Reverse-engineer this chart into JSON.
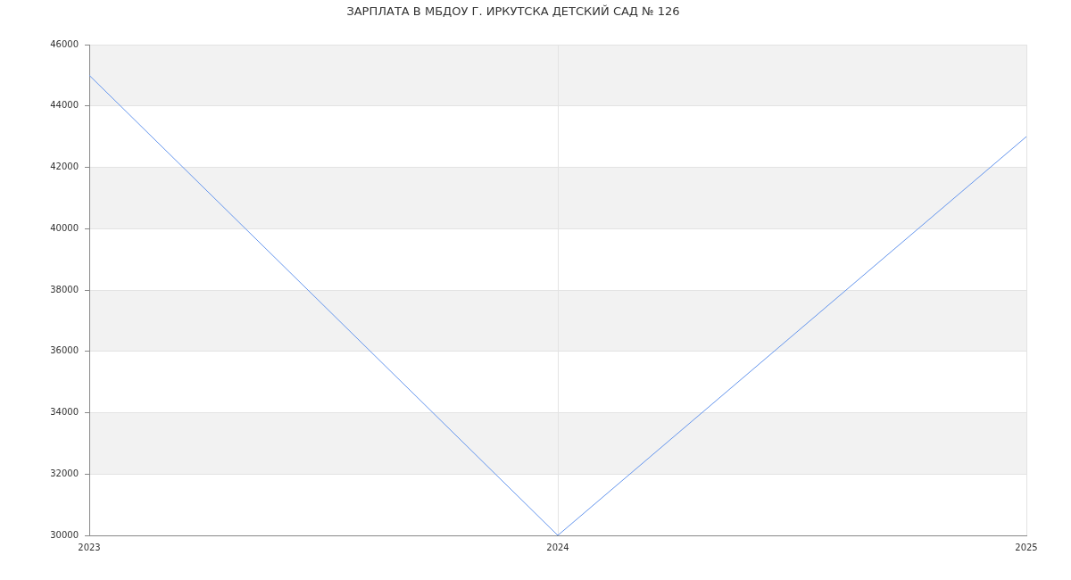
{
  "chart_data": {
    "type": "line",
    "title": "ЗАРПЛАТА В МБДОУ Г. ИРКУТСКА ДЕТСКИЙ САД № 126",
    "categories": [
      "2023",
      "2024",
      "2025"
    ],
    "series": [
      {
        "color": "#6495ed",
        "values": [
          45000,
          30000,
          43000
        ]
      }
    ],
    "ylim": [
      30000,
      46000
    ],
    "yticks": [
      30000,
      32000,
      34000,
      36000,
      38000,
      40000,
      42000,
      44000,
      46000
    ],
    "grid": true,
    "marker": "none",
    "bands": [
      {
        "axis": "y",
        "from": 32000,
        "to": 34000,
        "color": "#f2f2f2"
      },
      {
        "axis": "y",
        "from": 36000,
        "to": 38000,
        "color": "#f2f2f2"
      },
      {
        "axis": "y",
        "from": 40000,
        "to": 42000,
        "color": "#f2f2f2"
      },
      {
        "axis": "y",
        "from": 44000,
        "to": 46000,
        "color": "#f2f2f2"
      }
    ]
  }
}
